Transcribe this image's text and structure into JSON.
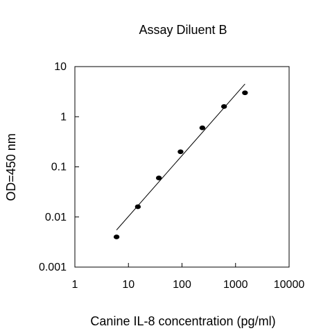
{
  "chart_data": {
    "type": "scatter",
    "title": "Assay Diluent B",
    "xlabel": "Canine IL-8 concentration (pg/ml)",
    "ylabel": "OD=450 nm",
    "x_scale": "log",
    "y_scale": "log",
    "xlim": [
      1,
      10000
    ],
    "ylim": [
      0.001,
      10
    ],
    "x_ticks": [
      1,
      10,
      100,
      1000,
      10000
    ],
    "x_tick_labels": [
      "1",
      "10",
      "100",
      "1000",
      "10000"
    ],
    "y_ticks": [
      0.001,
      0.01,
      0.1,
      1,
      10
    ],
    "y_tick_labels": [
      "0.001",
      "0.01",
      "0.1",
      "1",
      "10"
    ],
    "grid": false,
    "legend": "none",
    "series": [
      {
        "points": [
          {
            "x": 6,
            "y": 0.004
          },
          {
            "x": 15,
            "y": 0.016
          },
          {
            "x": 37,
            "y": 0.06
          },
          {
            "x": 94,
            "y": 0.2
          },
          {
            "x": 240,
            "y": 0.6
          },
          {
            "x": 610,
            "y": 1.6
          },
          {
            "x": 1500,
            "y": 3.0
          }
        ],
        "color": "#000000"
      }
    ],
    "fit_line": {
      "points": [
        {
          "x": 6,
          "y": 0.0055
        },
        {
          "x": 1500,
          "y": 4.5
        }
      ],
      "color": "#000000"
    }
  }
}
